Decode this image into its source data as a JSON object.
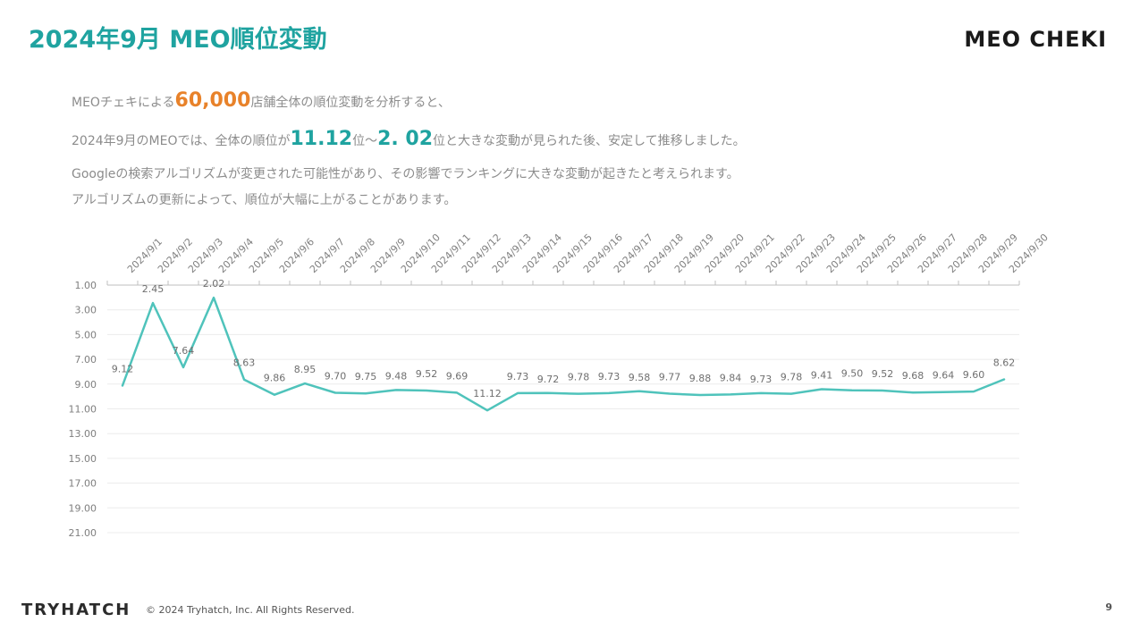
{
  "header": {
    "title": "2024年9月 MEO順位変動",
    "logo_text": "MEO CHEKI"
  },
  "intro": {
    "line1_a": "MEOチェキによる",
    "line1_num": "60,000",
    "line1_b": "店舗全体の順位変動を分析すると、",
    "line2_a": "2024年9月のMEOでは、全体の順位が",
    "line2_num1": "11.12",
    "line2_mid": "位～",
    "line2_num2": "2. 02",
    "line2_b": "位と大きな変動が見られた後、安定して推移しました。",
    "line3": "Googleの検索アルゴリズムが変更された可能性があり、その影響でランキングに大きな変動が起きたと考えられます。",
    "line4": "アルゴリズムの更新によって、順位が大幅に上がることがあります。"
  },
  "colors": {
    "accent_teal": "#1fa3a0",
    "accent_orange": "#e8822a",
    "line": "#4fc3bb"
  },
  "chart_data": {
    "type": "line",
    "title": "",
    "xlabel": "",
    "ylabel": "",
    "y_inverted": true,
    "ylim": [
      1,
      21
    ],
    "yticks": [
      "1.00",
      "3.00",
      "5.00",
      "7.00",
      "9.00",
      "11.00",
      "13.00",
      "15.00",
      "17.00",
      "19.00",
      "21.00"
    ],
    "categories": [
      "2024/9/1",
      "2024/9/2",
      "2024/9/3",
      "2024/9/4",
      "2024/9/5",
      "2024/9/6",
      "2024/9/7",
      "2024/9/8",
      "2024/9/9",
      "2024/9/10",
      "2024/9/11",
      "2024/9/12",
      "2024/9/13",
      "2024/9/14",
      "2024/9/15",
      "2024/9/16",
      "2024/9/17",
      "2024/9/18",
      "2024/9/19",
      "2024/9/20",
      "2024/9/21",
      "2024/9/22",
      "2024/9/23",
      "2024/9/24",
      "2024/9/25",
      "2024/9/26",
      "2024/9/27",
      "2024/9/28",
      "2024/9/29",
      "2024/9/30"
    ],
    "values": [
      9.12,
      2.45,
      7.64,
      2.02,
      8.63,
      9.86,
      8.95,
      9.7,
      9.75,
      9.48,
      9.52,
      9.69,
      11.12,
      9.73,
      9.72,
      9.78,
      9.73,
      9.58,
      9.77,
      9.88,
      9.84,
      9.73,
      9.78,
      9.41,
      9.5,
      9.52,
      9.68,
      9.64,
      9.6,
      8.62
    ]
  },
  "footer": {
    "brand": "TRYHATCH",
    "copyright": "© 2024 Tryhatch, Inc. All Rights Reserved.",
    "page_number": "9"
  }
}
